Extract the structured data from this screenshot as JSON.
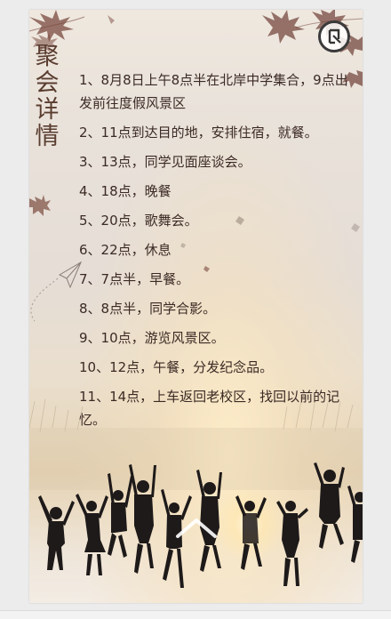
{
  "page": {
    "title": "聚会详情",
    "items": [
      "1、8月8日上午8点半在北岸中学集合，9点出发前往度假风景区",
      "2、11点到达目的地，安排住宿，就餐。",
      "3、13点，同学见面座谈会。",
      "4、18点，晚餐",
      "5、20点，歌舞会。",
      "6、22点，休息",
      "7、7点半，早餐。",
      "8、8点半，同学合影。",
      "9、10点，游览风景区。",
      "10、12点，午餐，分发纪念品。",
      "11、14点，上车返回老校区，找回以前的记忆。"
    ]
  },
  "icons": {
    "music": "music-toggle-icon",
    "arrow": "chevron-up-icon",
    "plane": "paper-plane-icon",
    "leaves": "maple-leaf-icon"
  },
  "colors": {
    "title": "#5a3d30",
    "text": "#3b2a24",
    "leaf": "#7a4a3f"
  }
}
